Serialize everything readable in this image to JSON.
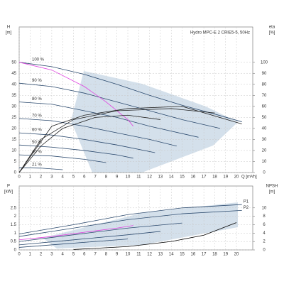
{
  "chart_data": [
    {
      "type": "line",
      "title": "Hydro MPC-E 2 CRIE5-5, 50Hz",
      "y_label": "H",
      "y_unit": "[m]",
      "y2_label": "eta",
      "y2_unit": "[%]",
      "x_label": "Q [m³/h]",
      "xlim": [
        0,
        21.5
      ],
      "ylim": [
        0,
        66
      ],
      "y2lim": [
        0,
        132
      ],
      "xticks": [
        0,
        1,
        2,
        3,
        4,
        5,
        6,
        7,
        8,
        9,
        10,
        11,
        12,
        13,
        14,
        15,
        16,
        17,
        18,
        19,
        20
      ],
      "yticks": [
        0,
        5,
        10,
        15,
        20,
        25,
        30,
        35,
        40,
        45,
        50
      ],
      "y2ticks": [
        0,
        10,
        20,
        30,
        40,
        50,
        60,
        70,
        80,
        90,
        100
      ],
      "grid": true,
      "series": [
        {
          "name": "100 %",
          "color": "#2c4a6e",
          "x": [
            0,
            3,
            6,
            9,
            12,
            15,
            18,
            20.5
          ],
          "values": [
            50,
            48,
            44.5,
            40,
            35,
            30.5,
            26.5,
            23
          ]
        },
        {
          "name": "90 %",
          "color": "#2c4a6e",
          "x": [
            0,
            3,
            6,
            9,
            12,
            15,
            18.5
          ],
          "values": [
            40.5,
            39,
            36,
            32,
            28,
            24,
            20
          ]
        },
        {
          "name": "80 %",
          "color": "#2c4a6e",
          "x": [
            0,
            3,
            6,
            9,
            12,
            16.5
          ],
          "values": [
            32,
            31,
            28,
            25,
            21,
            16
          ]
        },
        {
          "name": "70 %",
          "color": "#2c4a6e",
          "x": [
            0,
            3,
            6,
            9,
            12,
            14.5
          ],
          "values": [
            24.5,
            23.5,
            21,
            18,
            15,
            12
          ]
        },
        {
          "name": "60 %",
          "color": "#2c4a6e",
          "x": [
            0,
            3,
            6,
            9,
            12.5
          ],
          "values": [
            18,
            17,
            15,
            12.5,
            9
          ]
        },
        {
          "name": "50 %",
          "color": "#2c4a6e",
          "x": [
            0,
            3,
            6,
            9,
            10.5
          ],
          "values": [
            12.5,
            11.5,
            10,
            8,
            6.5
          ]
        },
        {
          "name": "40 %",
          "color": "#2c4a6e",
          "x": [
            0,
            3,
            6,
            8
          ],
          "values": [
            8,
            7.5,
            6,
            4.5
          ]
        },
        {
          "name": "21 %",
          "color": "#2c4a6e",
          "x": [
            0,
            2,
            4
          ],
          "values": [
            2.2,
            2,
            1.3
          ]
        },
        {
          "color": "#e040e0",
          "x": [
            0,
            3,
            6,
            8,
            10,
            10.5
          ],
          "values": [
            50,
            46.5,
            39,
            32,
            24,
            21
          ]
        },
        {
          "color": "#222222",
          "axis": "y2",
          "x": [
            0,
            3,
            6,
            10,
            15,
            20.5
          ],
          "values": [
            0,
            42,
            52,
            58,
            60,
            44
          ]
        },
        {
          "color": "#222222",
          "axis": "y2",
          "x": [
            0,
            2,
            5,
            9,
            14,
            18
          ],
          "values": [
            0,
            30,
            48,
            56,
            58,
            54
          ]
        },
        {
          "color": "#222222",
          "axis": "y2",
          "x": [
            0,
            2,
            4,
            7,
            10,
            13
          ],
          "values": [
            0,
            24,
            40,
            50,
            52,
            48
          ]
        }
      ]
    },
    {
      "type": "line",
      "y_label": "P",
      "y_unit": "[kW]",
      "y2_label": "NPSH",
      "y2_unit": "[m]",
      "xlim": [
        0,
        21.5
      ],
      "ylim": [
        0,
        3.8
      ],
      "y2lim": [
        0,
        15.2
      ],
      "xticks": [
        0,
        1,
        2,
        3,
        4,
        5,
        6,
        7,
        8,
        9,
        10,
        11,
        12,
        13,
        14,
        15,
        16,
        17,
        18,
        19,
        20
      ],
      "yticks": [
        0,
        0.5,
        1,
        1.5,
        2,
        2.5
      ],
      "y2ticks": [
        0,
        2,
        4,
        6,
        8,
        10
      ],
      "grid": true,
      "series": [
        {
          "name": "P1",
          "color": "#2c4a6e",
          "x": [
            0,
            5,
            10,
            15,
            20.5
          ],
          "values": [
            0.95,
            1.5,
            2.1,
            2.5,
            2.7
          ]
        },
        {
          "name": "P2",
          "color": "#2c4a6e",
          "x": [
            0,
            5,
            10,
            15,
            20.5
          ],
          "values": [
            0.8,
            1.3,
            1.8,
            2.15,
            2.35
          ]
        },
        {
          "color": "#2c4a6e",
          "x": [
            0,
            5,
            10,
            15
          ],
          "values": [
            0.5,
            0.9,
            1.3,
            1.6
          ]
        },
        {
          "color": "#2c4a6e",
          "x": [
            0,
            5,
            10,
            13
          ],
          "values": [
            0.3,
            0.6,
            0.9,
            1.1
          ]
        },
        {
          "color": "#2c4a6e",
          "x": [
            0,
            4,
            8,
            10
          ],
          "values": [
            0.15,
            0.35,
            0.55,
            0.65
          ]
        },
        {
          "color": "#e040e0",
          "x": [
            0,
            3,
            6,
            9,
            10.5
          ],
          "values": [
            0.6,
            0.8,
            1.05,
            1.3,
            1.45
          ]
        },
        {
          "color": "#000000",
          "axis": "y2",
          "x": [
            5,
            10,
            14,
            17,
            20
          ],
          "values": [
            0.1,
            0.8,
            2,
            3.5,
            6.5
          ]
        }
      ]
    }
  ]
}
